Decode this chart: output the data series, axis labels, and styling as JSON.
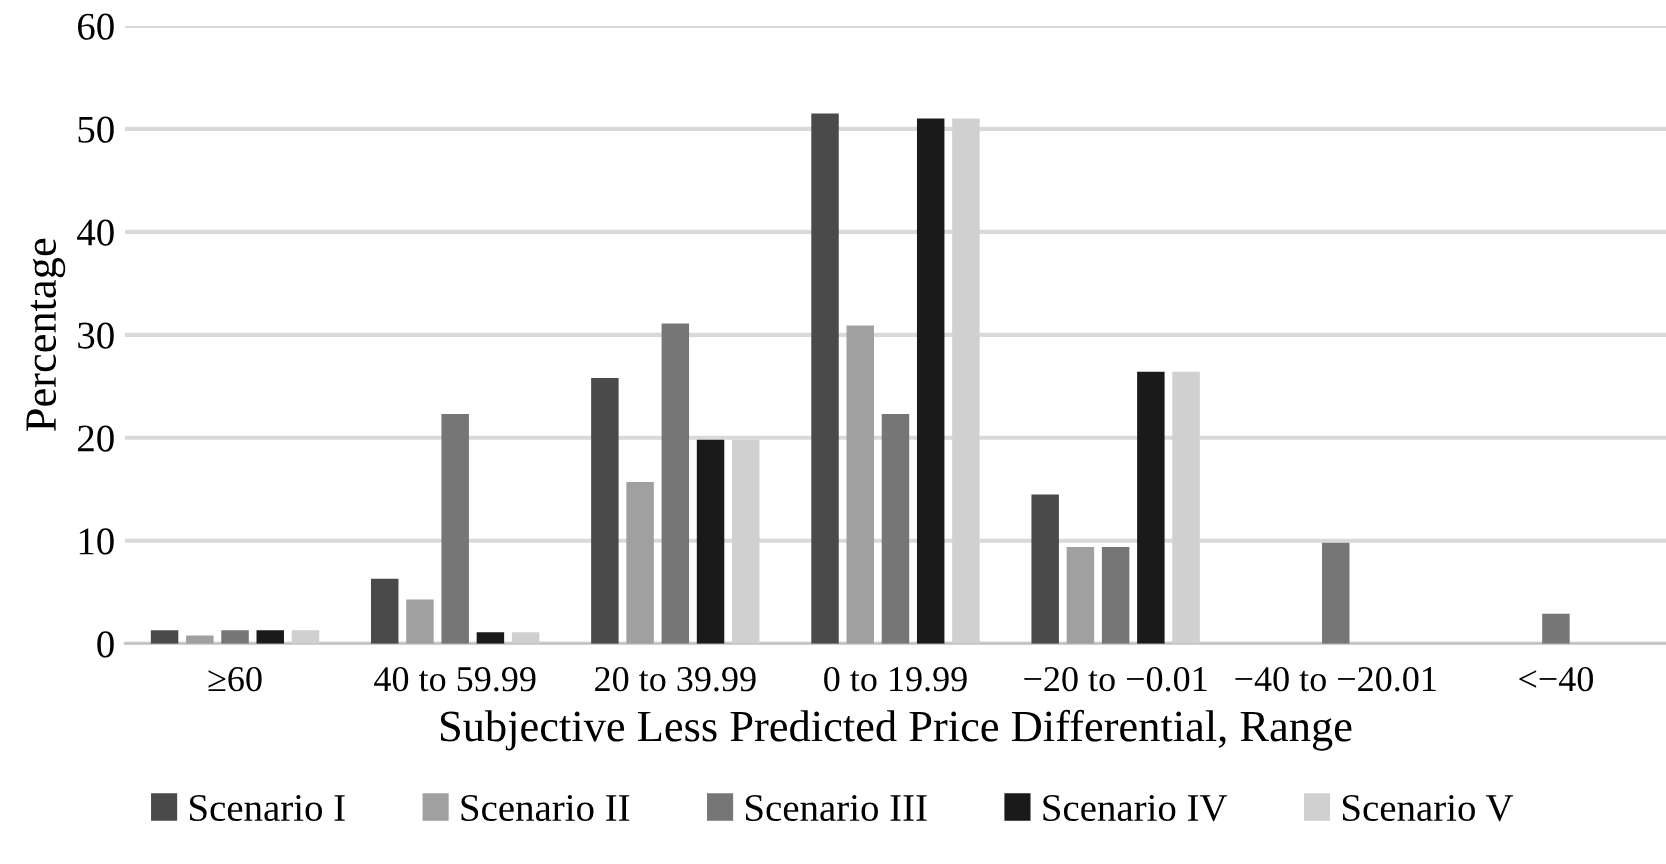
{
  "chart_data": {
    "type": "bar",
    "xlabel": "Subjective Less Predicted Price Differential, Range",
    "ylabel": "Percentage",
    "categories": [
      "≥60",
      "40 to 59.99",
      "20 to 39.99",
      "0 to 19.99",
      "−20 to −0.01",
      "−40 to −20.01",
      "<−40"
    ],
    "series": [
      {
        "name": "Scenario I",
        "color": "#4a4a4a",
        "values": [
          1.3,
          6.3,
          25.8,
          51.5,
          14.5,
          0,
          0
        ]
      },
      {
        "name": "Scenario II",
        "color": "#a0a0a0",
        "values": [
          0.8,
          4.3,
          15.7,
          30.9,
          9.4,
          0,
          0
        ]
      },
      {
        "name": "Scenario III",
        "color": "#767676",
        "values": [
          1.3,
          22.3,
          31.1,
          22.3,
          9.4,
          9.8,
          2.9
        ]
      },
      {
        "name": "Scenario IV",
        "color": "#1a1a1a",
        "values": [
          1.3,
          1.1,
          19.8,
          51.0,
          26.4,
          0,
          0
        ]
      },
      {
        "name": "Scenario V",
        "color": "#d0d0d0",
        "values": [
          1.3,
          1.1,
          19.8,
          51.0,
          26.4,
          0,
          0
        ]
      }
    ],
    "ylim": [
      0,
      60
    ],
    "yticks": [
      0,
      10,
      20,
      30,
      40,
      50,
      60
    ],
    "grid": "y",
    "legend": "bottom"
  }
}
